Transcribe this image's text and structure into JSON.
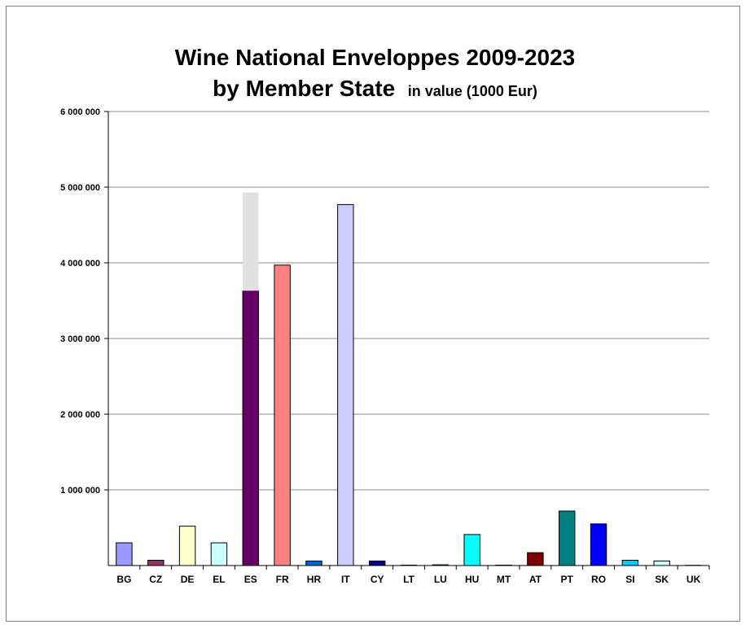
{
  "chart_data": {
    "type": "bar",
    "title": "Wine National Enveloppes 2009-2023",
    "subtitle_main": "by Member State",
    "subtitle_unit": "in value (1000  Eur)",
    "xlabel": "",
    "ylabel": "",
    "ylim": [
      0,
      6000000
    ],
    "yticks": [
      {
        "value": 1000000,
        "label": "1 000 000"
      },
      {
        "value": 2000000,
        "label": "2 000 000"
      },
      {
        "value": 3000000,
        "label": "3 000 000"
      },
      {
        "value": 4000000,
        "label": "4 000 000"
      },
      {
        "value": 5000000,
        "label": "5 000 000"
      },
      {
        "value": 6000000,
        "label": "6 000 000"
      }
    ],
    "grid": true,
    "legend": "none",
    "categories": [
      "BG",
      "CZ",
      "DE",
      "EL",
      "ES",
      "FR",
      "HR",
      "IT",
      "CY",
      "LT",
      "LU",
      "HU",
      "MT",
      "AT",
      "PT",
      "RO",
      "SI",
      "SK",
      "UK"
    ],
    "values": [
      300000,
      70000,
      520000,
      300000,
      3630000,
      3970000,
      60000,
      4770000,
      60000,
      5000,
      10000,
      410000,
      5000,
      170000,
      720000,
      550000,
      70000,
      60000,
      3000
    ],
    "stacked_extra": [
      0,
      0,
      0,
      0,
      1300000,
      0,
      0,
      0,
      0,
      0,
      0,
      0,
      0,
      0,
      0,
      0,
      0,
      0,
      0
    ],
    "colors": [
      "#9999ff",
      "#993366",
      "#ffffcc",
      "#ccffff",
      "#660066",
      "#ff8080",
      "#0066cc",
      "#ccccff",
      "#000080",
      "#ff00ff",
      "#808080",
      "#00ffff",
      "#800080",
      "#800000",
      "#008080",
      "#0000ff",
      "#00ccff",
      "#ccffff",
      "#c0c0c0"
    ],
    "extra_color": "#e0e0e0"
  }
}
